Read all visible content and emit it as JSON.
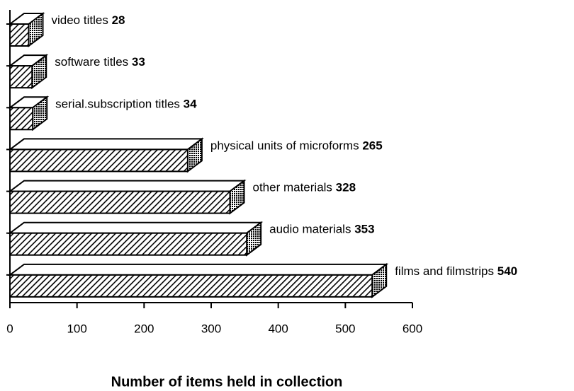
{
  "chart_data": {
    "type": "bar3d_horizontal",
    "x_label": "Number of items held in collection",
    "categories": [
      "video titles",
      "software titles",
      "serial.subscription titles",
      "physical units of microforms",
      "other materials",
      "audio materials",
      "films and filmstrips"
    ],
    "values": [
      28,
      33,
      34,
      265,
      328,
      353,
      540
    ],
    "xlim": [
      0,
      600
    ],
    "xticks": [
      0,
      100,
      200,
      300,
      400,
      500,
      600
    ]
  }
}
